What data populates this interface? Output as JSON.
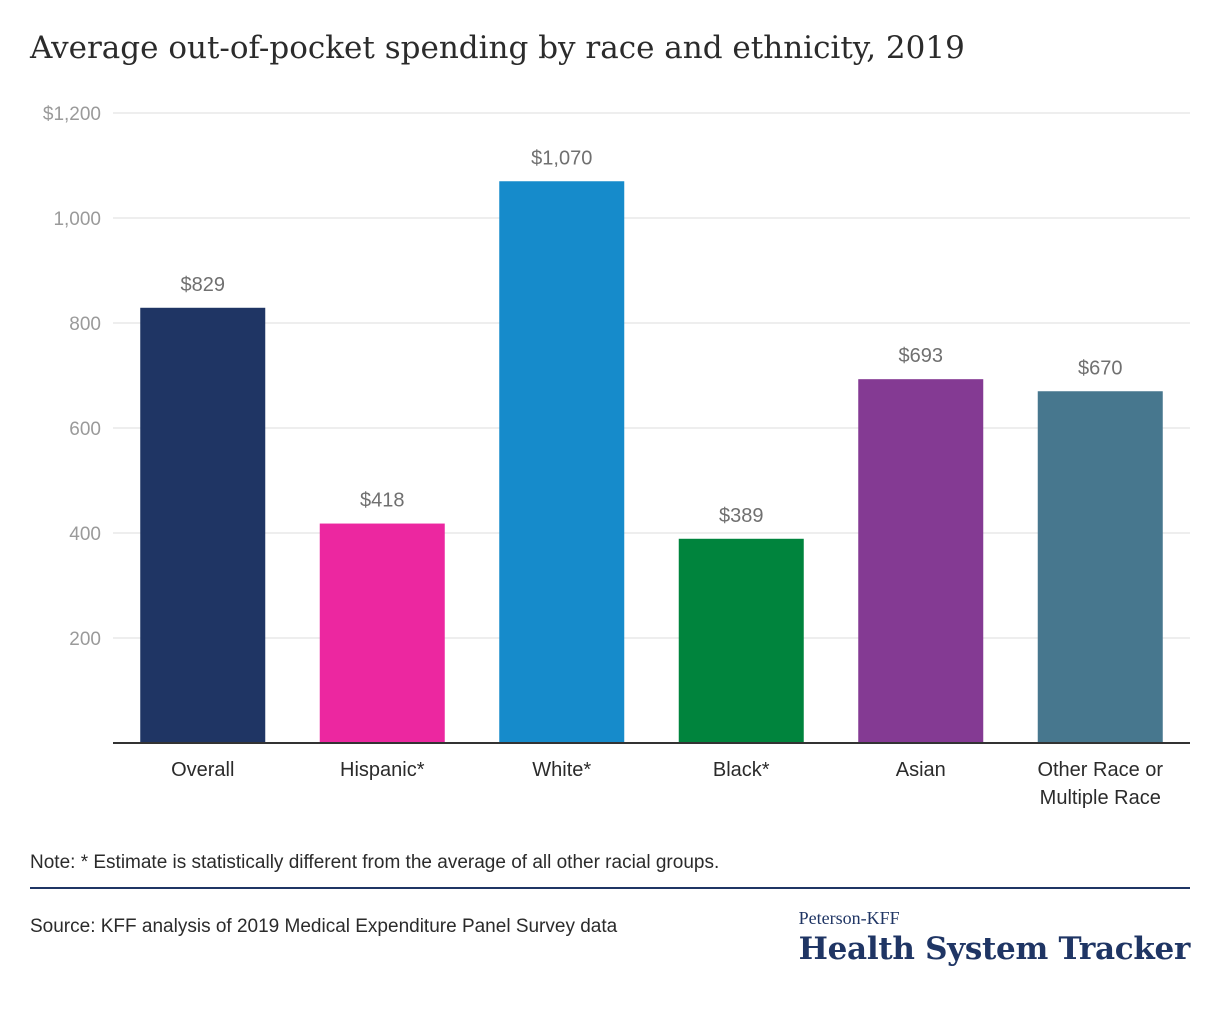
{
  "title": "Average out-of-pocket spending by race and ethnicity, 2019",
  "chart_data": {
    "type": "bar",
    "categories": [
      [
        "Overall"
      ],
      [
        "Hispanic*"
      ],
      [
        "White*"
      ],
      [
        "Black*"
      ],
      [
        "Asian"
      ],
      [
        "Other Race or",
        "Multiple Race"
      ]
    ],
    "values": [
      829,
      418,
      1070,
      389,
      693,
      670
    ],
    "value_labels": [
      "$829",
      "$418",
      "$1,070",
      "$389",
      "$693",
      "$670"
    ],
    "colors": [
      "#1f3564",
      "#ec27a0",
      "#168bcb",
      "#00843d",
      "#843a93",
      "#47778e"
    ],
    "ylim": [
      0,
      1200
    ],
    "yticks": [
      200,
      400,
      600,
      800,
      1000,
      1200
    ],
    "ytick_labels": [
      "200",
      "400",
      "600",
      "800",
      "1,000",
      "$1,200"
    ],
    "grid": true,
    "xlabel": "",
    "ylabel": ""
  },
  "note": "Note: * Estimate is statistically different from the average of all other racial groups.",
  "source": "Source: KFF analysis of 2019 Medical Expenditure Panel Survey data",
  "logo": {
    "top": "Peterson-KFF",
    "main": "Health System Tracker"
  }
}
